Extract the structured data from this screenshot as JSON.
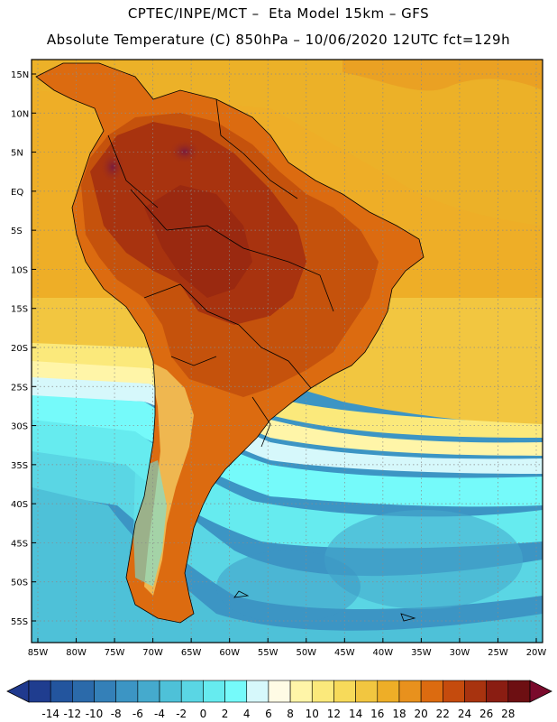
{
  "header": {
    "line1": "CPTEC/INPE/MCT –  Eta Model 15km – GFS",
    "line2": "Absolute Temperature (C) 850hPa – 10/06/2020 12UTC fct=129h"
  },
  "map": {
    "lat_labels": [
      "15N",
      "10N",
      "5N",
      "EQ",
      "5S",
      "10S",
      "15S",
      "20S",
      "25S",
      "30S",
      "35S",
      "40S",
      "45S",
      "50S",
      "55S"
    ],
    "lon_labels": [
      "85W",
      "80W",
      "75W",
      "70W",
      "65W",
      "60W",
      "55W",
      "50W",
      "45W",
      "40W",
      "35W",
      "30W",
      "25W",
      "20W"
    ],
    "lat_values": [
      15,
      10,
      5,
      0,
      -5,
      -10,
      -15,
      -20,
      -25,
      -30,
      -35,
      -40,
      -45,
      -50,
      -55
    ],
    "lon_values": [
      -85,
      -80,
      -75,
      -70,
      -65,
      -60,
      -55,
      -50,
      -45,
      -40,
      -35,
      -30,
      -25,
      -20
    ]
  },
  "colorbar": {
    "labels": [
      "-14",
      "-12",
      "-10",
      "-8",
      "-6",
      "-4",
      "-2",
      "0",
      "2",
      "4",
      "6",
      "8",
      "10",
      "12",
      "14",
      "16",
      "18",
      "20",
      "22",
      "24",
      "26",
      "28"
    ],
    "colors": [
      "#1f3d8f",
      "#23559e",
      "#2b6aaa",
      "#3480b8",
      "#3c95c4",
      "#45aacd",
      "#4ec1d8",
      "#5ad6e4",
      "#66ebef",
      "#75fafa",
      "#d6f8fb",
      "#fffbe5",
      "#fff5a8",
      "#fbe97b",
      "#f7da5a",
      "#f2c640",
      "#eeae27",
      "#e8911d",
      "#dc6b10",
      "#c54b0d",
      "#a8330f",
      "#8a1d12",
      "#6d0f12"
    ],
    "low_color": "#203a8e",
    "high_color": "#7a0a2c"
  },
  "legend_colors": {
    "ocean_tropical": "#ecb128",
    "ocean_warm": "#f0c239",
    "ocean_mid": "#f6db5d",
    "ocean_cool": "#fff3a0",
    "ocean_cold": "#66ebef",
    "ocean_colder": "#45aacd",
    "land_hot": "#c5520c",
    "land_hotter": "#a8330f",
    "land_peak": "#7a1b1e",
    "frame": "#000000"
  }
}
